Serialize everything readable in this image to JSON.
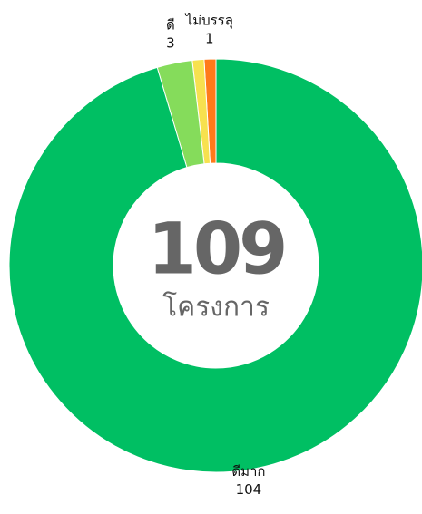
{
  "chart_data": {
    "type": "donut",
    "categories": [
      "ดีมาก",
      "ดี",
      null,
      "ไม่บรรลุ"
    ],
    "values": [
      104,
      3,
      1,
      1
    ],
    "colors": [
      "#00bf63",
      "#85dc5b",
      "#f7e14f",
      "#ff7a1a"
    ],
    "value_labels": [
      "104",
      "3",
      null,
      "1"
    ],
    "center_value": 109,
    "center_label": "โครงการ"
  }
}
